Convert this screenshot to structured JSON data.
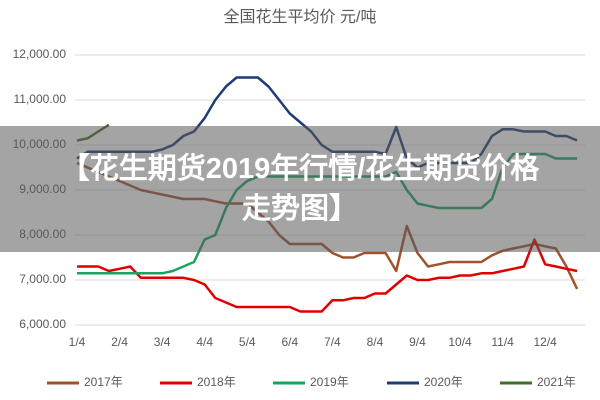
{
  "chart_data": {
    "type": "line",
    "title": "全国花生平均价  元/吨",
    "categories": [
      "1/4",
      null,
      null,
      null,
      "2/4",
      null,
      null,
      null,
      "3/4",
      null,
      null,
      null,
      "4/4",
      null,
      null,
      null,
      "5/4",
      null,
      null,
      null,
      "6/4",
      null,
      null,
      null,
      "7/4",
      null,
      null,
      null,
      "8/4",
      null,
      null,
      null,
      "9/4",
      null,
      null,
      null,
      "10/4",
      null,
      null,
      null,
      "11/4",
      null,
      null,
      null,
      "12/4",
      null,
      null,
      null
    ],
    "series": [
      {
        "name": "2017年",
        "color": "#a0522d",
        "values": [
          9600,
          9500,
          9400,
          9300,
          9200,
          9100,
          9000,
          8950,
          8900,
          8850,
          8800,
          8800,
          8800,
          8750,
          8700,
          8700,
          8700,
          8500,
          8300,
          8000,
          7800,
          7800,
          7800,
          7800,
          7600,
          7500,
          7500,
          7600,
          7600,
          7600,
          7200,
          8200,
          7600,
          7300,
          7350,
          7400,
          7400,
          7400,
          7400,
          7550,
          7650,
          7700,
          7750,
          7800,
          7750,
          7700,
          7300,
          6800
        ]
      },
      {
        "name": "2018年",
        "color": "#e00000",
        "values": [
          7300,
          7300,
          7300,
          7200,
          7250,
          7300,
          7050,
          7050,
          7050,
          7050,
          7050,
          7000,
          6900,
          6600,
          6500,
          6400,
          6400,
          6400,
          6400,
          6400,
          6400,
          6300,
          6300,
          6300,
          6550,
          6550,
          6600,
          6600,
          6700,
          6700,
          6900,
          7100,
          7000,
          7000,
          7050,
          7050,
          7100,
          7100,
          7150,
          7150,
          7200,
          7250,
          7300,
          7900,
          7350,
          7300,
          7250,
          7200
        ]
      },
      {
        "name": "2019年",
        "color": "#1aa360",
        "values": [
          7150,
          7150,
          7150,
          7150,
          7150,
          7150,
          7150,
          7150,
          7150,
          7200,
          7300,
          7400,
          7900,
          8000,
          8600,
          9000,
          9200,
          9300,
          9300,
          9300,
          9300,
          9300,
          9300,
          9300,
          9300,
          9300,
          9300,
          9300,
          9300,
          9300,
          9400,
          9000,
          8700,
          8650,
          8600,
          8600,
          8600,
          8600,
          8600,
          8800,
          9500,
          9800,
          9800,
          9800,
          9800,
          9700,
          9700,
          9700
        ]
      },
      {
        "name": "2020年",
        "color": "#1f3c73",
        "values": [
          9700,
          9850,
          9850,
          9850,
          9850,
          9850,
          9850,
          9850,
          9900,
          10000,
          10200,
          10300,
          10600,
          11000,
          11300,
          11500,
          11500,
          11500,
          11300,
          11000,
          10700,
          10500,
          10300,
          10000,
          9850,
          9850,
          9850,
          9850,
          9850,
          9800,
          10400,
          9700,
          9500,
          9600,
          9600,
          9600,
          9600,
          9600,
          9800,
          10200,
          10350,
          10350,
          10300,
          10300,
          10300,
          10200,
          10200,
          10100
        ]
      },
      {
        "name": "2021年",
        "color": "#3f6f2a",
        "values": [
          10100,
          10150,
          10300,
          10450,
          null,
          null,
          null,
          null,
          null,
          null,
          null,
          null,
          null,
          null,
          null,
          null,
          null,
          null,
          null,
          null,
          null,
          null,
          null,
          null,
          null,
          null,
          null,
          null,
          null,
          null,
          null,
          null,
          null,
          null,
          null,
          null,
          null,
          null,
          null,
          null,
          null,
          null,
          null,
          null,
          null,
          null,
          null,
          null
        ]
      }
    ],
    "ylim": [
      6000,
      12000
    ],
    "yticks": [
      {
        "value": 6000,
        "label": "6,000.00"
      },
      {
        "value": 7000,
        "label": "7,000.00"
      },
      {
        "value": 8000,
        "label": "8,000.00"
      },
      {
        "value": 9000,
        "label": "9,000.00"
      },
      {
        "value": 10000,
        "label": "10,000.00"
      },
      {
        "value": 11000,
        "label": "11,000.00"
      },
      {
        "value": 12000,
        "label": "12,000.00"
      }
    ],
    "grid": true,
    "legend": "bottom"
  },
  "banner": {
    "text": "【花生期货2019年行情/花生期货价格走势图】"
  }
}
